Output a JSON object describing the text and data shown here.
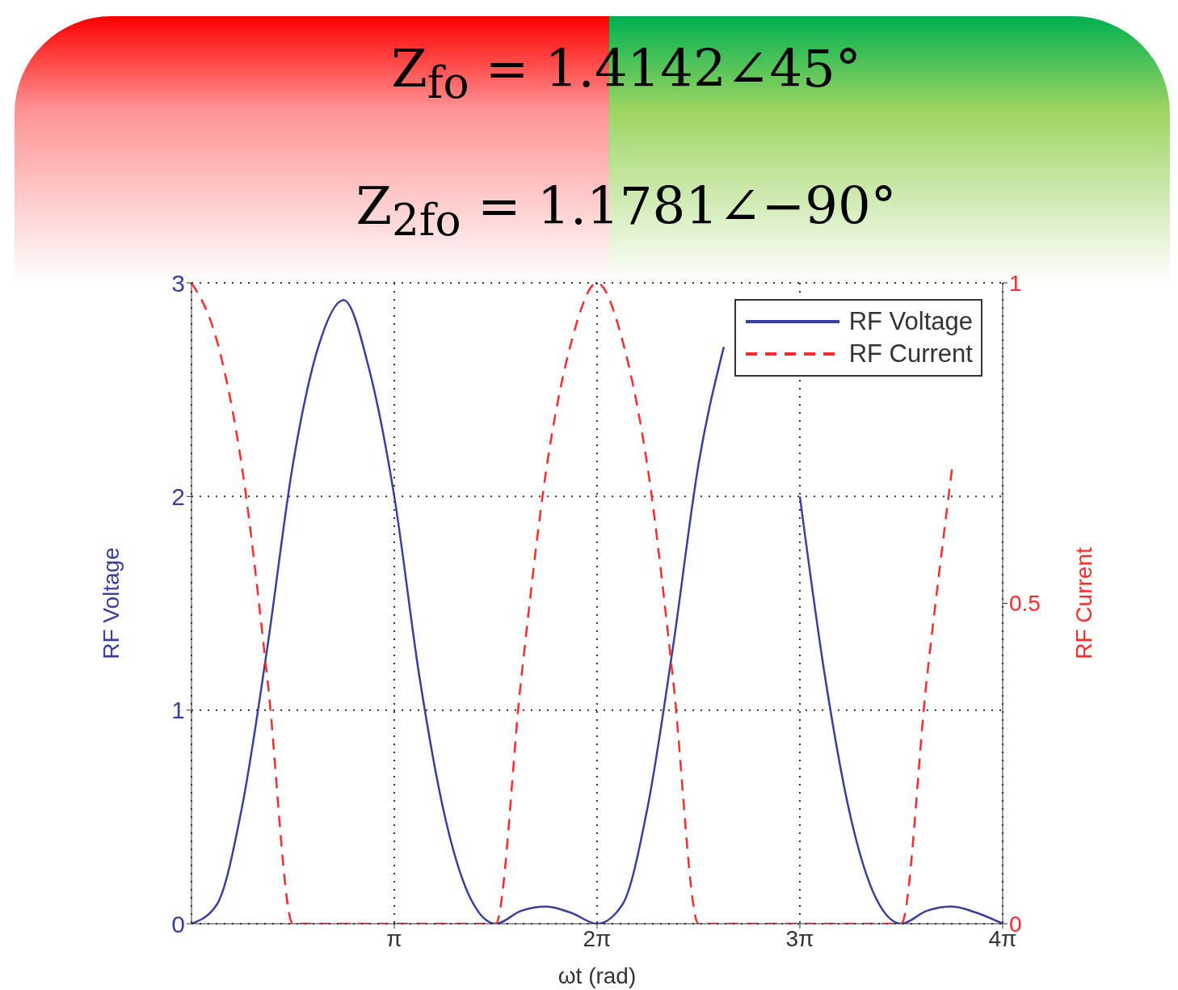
{
  "chart_data": {
    "type": "line",
    "title": "Z$_{fo}$ = 1.4142∠45°",
    "subtitle": "Z$_{2fo}$ = 1.1781∠−90°",
    "xlabel": "ωt (rad)",
    "ylabel": "RF Voltage",
    "y2label": "RF Current",
    "x": [
      0,
      0.3927,
      0.7854,
      1.1781,
      1.5708,
      1.9635,
      2.3562,
      2.7489,
      3.1416,
      3.5343,
      3.927,
      4.3197,
      4.7124,
      5.1051,
      5.4978,
      5.8905,
      6.2832,
      6.6759,
      7.0686,
      7.4613,
      7.854,
      8.2467,
      8.6394,
      9.0321,
      9.4248,
      9.8175,
      10.2102,
      10.6029,
      10.9956,
      11.3883,
      11.781,
      12.1737,
      12.5664
    ],
    "xlim": [
      0,
      12.5664
    ],
    "xticks": [
      {
        "value": 3.1416,
        "label": "π"
      },
      {
        "value": 6.2832,
        "label": "2π"
      },
      {
        "value": 9.4248,
        "label": "3π"
      },
      {
        "value": 12.5664,
        "label": "4π"
      }
    ],
    "ylim": [
      0,
      3
    ],
    "yticks": [
      0,
      1,
      2,
      3
    ],
    "y2lim": [
      0,
      1
    ],
    "y2ticks": [
      0,
      0.5,
      1
    ],
    "series": [
      {
        "name": "RF Voltage",
        "color": "#3a3f9f",
        "line_style": "solid",
        "values": [
          0,
          0.09,
          0.55,
          1.3,
          2.15,
          2.7,
          2.92,
          2.6,
          2.0,
          1.15,
          0.5,
          0.12,
          0,
          0.06,
          0.08,
          0.05,
          0,
          0.09,
          0.55,
          1.3,
          2.15,
          2.7,
          null,
          null,
          2.0,
          1.15,
          0.5,
          0.12,
          0,
          0.06,
          0.08,
          0.05,
          0
        ]
      },
      {
        "name": "RF Current",
        "color": "#ff2a2a",
        "line_style": "dashed",
        "axis": "y2",
        "values": [
          1,
          0.91,
          0.71,
          0.38,
          0,
          0,
          0,
          0,
          0,
          0,
          0,
          0,
          0,
          0.38,
          0.71,
          0.91,
          1,
          0.91,
          0.71,
          0.38,
          0,
          0,
          0,
          0,
          0,
          0,
          0,
          0,
          0,
          0.38,
          0.71,
          null,
          null
        ]
      }
    ],
    "grid": true,
    "legend": "top right"
  }
}
